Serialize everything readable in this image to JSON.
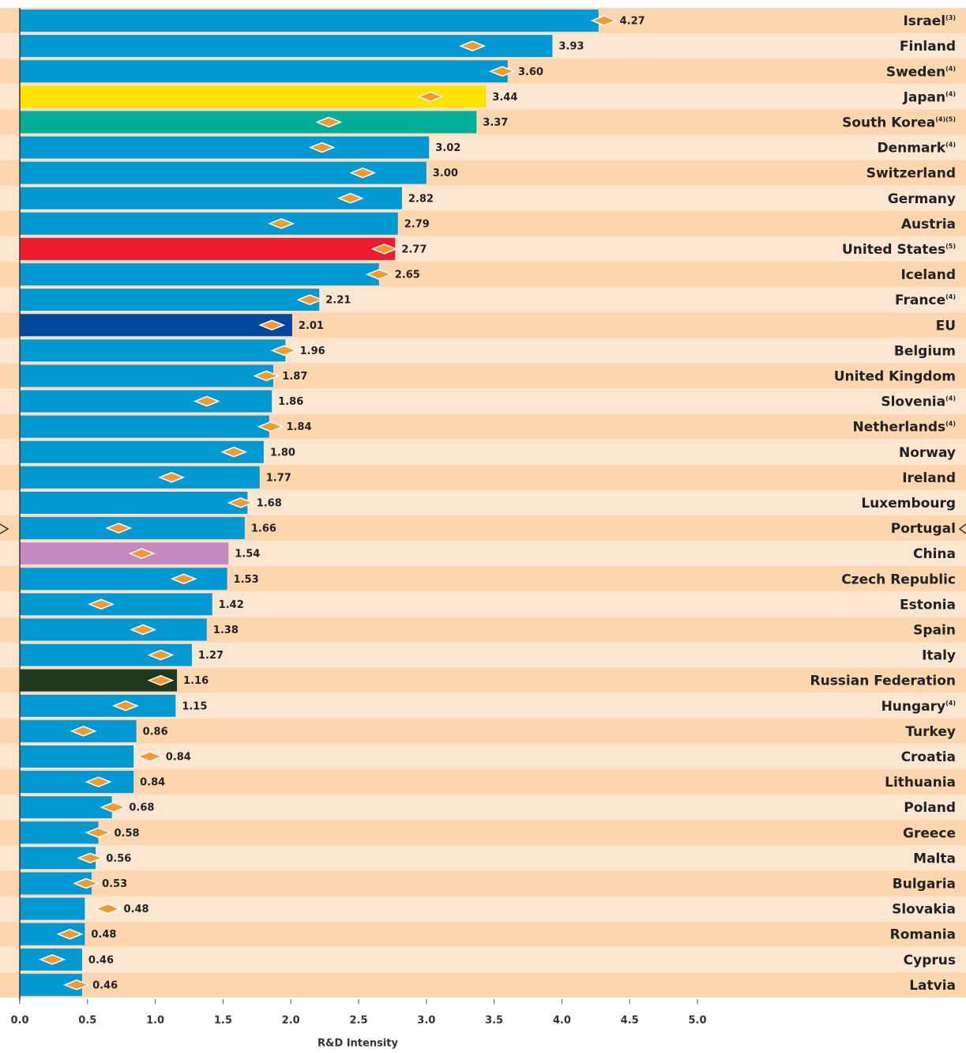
{
  "chart_data": {
    "type": "bar",
    "x_label": "R&D Intensity",
    "categories": [
      "Israel",
      "Finland",
      "Sweden",
      "Japan",
      "South Korea",
      "Denmark",
      "Switzerland",
      "Germany",
      "Austria",
      "United States",
      "Iceland",
      "France",
      "EU",
      "Belgium",
      "United Kingdom",
      "Slovenia",
      "Netherlands",
      "Norway",
      "Ireland",
      "Luxembourg",
      "Portugal",
      "China",
      "Czech Republic",
      "Estonia",
      "Spain",
      "Italy",
      "Russian Federation",
      "Hungary",
      "Turkey",
      "Croatia",
      "Lithuania",
      "Poland",
      "Greece",
      "Malta",
      "Bulgaria",
      "Slovakia",
      "Romania",
      "Cyprus",
      "Latvia"
    ],
    "notes": [
      "(3)",
      null,
      "(4)",
      "(4)",
      "(4)(5)",
      "(4)",
      null,
      null,
      null,
      "(5)",
      null,
      "(4)",
      null,
      null,
      null,
      "(4)",
      "(4)",
      null,
      null,
      null,
      null,
      null,
      null,
      null,
      null,
      null,
      null,
      "(4)",
      null,
      null,
      null,
      null,
      null,
      null,
      null,
      null,
      null,
      null,
      null
    ],
    "series": [
      {
        "values": [
          4.27,
          3.93,
          3.6,
          3.44,
          3.37,
          3.02,
          3.0,
          2.82,
          2.79,
          2.77,
          2.65,
          2.21,
          2.01,
          1.96,
          1.87,
          1.86,
          1.84,
          1.8,
          1.77,
          1.68,
          1.66,
          1.54,
          1.53,
          1.42,
          1.38,
          1.27,
          1.16,
          1.15,
          0.86,
          0.84,
          0.84,
          0.68,
          0.58,
          0.56,
          0.53,
          0.48,
          0.48,
          0.46,
          0.46
        ],
        "value_labels": [
          "4.27",
          "3.93",
          "3.60",
          "3.44",
          "3.37",
          "3.02",
          "3.00",
          "2.82",
          "2.79",
          "2.77",
          "2.65",
          "2.21",
          "2.01",
          "1.96",
          "1.87",
          "1.86",
          "1.84",
          "1.80",
          "1.77",
          "1.68",
          "1.66",
          "1.54",
          "1.53",
          "1.42",
          "1.38",
          "1.27",
          "1.16",
          "1.15",
          "0.86",
          "0.84",
          "0.84",
          "0.68",
          "0.58",
          "0.56",
          "0.53",
          "0.48",
          "0.48",
          "0.46",
          "0.46"
        ],
        "color": "#0099d4",
        "colors": [
          "#0099d4",
          "#0099d4",
          "#0099d4",
          "#ffe100",
          "#00ae9a",
          "#0099d4",
          "#0099d4",
          "#0099d4",
          "#0099d4",
          "#ee1c2e",
          "#0099d4",
          "#0099d4",
          "#0047a0",
          "#0099d4",
          "#0099d4",
          "#0099d4",
          "#0099d4",
          "#0099d4",
          "#0099d4",
          "#0099d4",
          "#0099d4",
          "#c58bc0",
          "#0099d4",
          "#0099d4",
          "#0099d4",
          "#0099d4",
          "#1d3a1f",
          "#0099d4",
          "#0099d4",
          "#0099d4",
          "#0099d4",
          "#0099d4",
          "#0099d4",
          "#0099d4",
          "#0099d4",
          "#0099d4",
          "#0099d4",
          "#0099d4",
          "#0099d4"
        ]
      },
      {
        "type": "diamond",
        "color": "#f39a2d",
        "values": [
          4.31,
          3.34,
          3.56,
          3.03,
          2.28,
          2.23,
          2.53,
          2.44,
          1.93,
          2.69,
          2.65,
          2.14,
          1.86,
          1.95,
          1.82,
          1.38,
          1.85,
          1.58,
          1.12,
          1.63,
          0.73,
          0.9,
          1.21,
          0.6,
          0.91,
          1.04,
          1.04,
          0.78,
          0.47,
          0.96,
          0.58,
          0.69,
          0.58,
          0.52,
          0.49,
          0.65,
          0.37,
          0.24,
          0.42
        ]
      }
    ],
    "xlim": [
      0,
      5.0
    ],
    "xticks": [
      {
        "value": 0,
        "label": "0.0"
      },
      0.5,
      {
        "value": 1,
        "label": "1.0"
      },
      1.5,
      {
        "value": 2,
        "label": "2.0"
      },
      2.5,
      {
        "value": 3,
        "label": "3.0"
      },
      3.5,
      {
        "value": 4,
        "label": "4.0"
      },
      4.5,
      {
        "value": 5,
        "label": "5.0"
      }
    ]
  }
}
